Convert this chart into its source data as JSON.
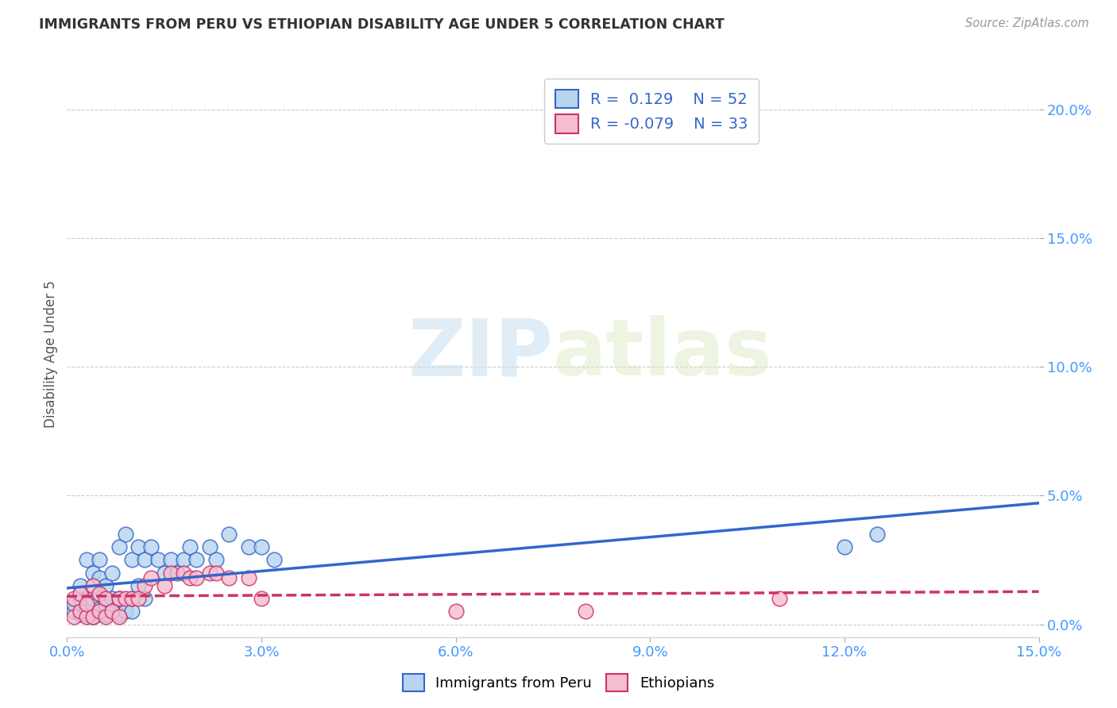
{
  "title": "IMMIGRANTS FROM PERU VS ETHIOPIAN DISABILITY AGE UNDER 5 CORRELATION CHART",
  "source": "Source: ZipAtlas.com",
  "ylabel": "Disability Age Under 5",
  "xlim": [
    0.0,
    0.15
  ],
  "ylim": [
    -0.005,
    0.215
  ],
  "xticks": [
    0.0,
    0.03,
    0.06,
    0.09,
    0.12,
    0.15
  ],
  "yticks": [
    0.0,
    0.05,
    0.1,
    0.15,
    0.2
  ],
  "peru_R": 0.129,
  "peru_N": 52,
  "eth_R": -0.079,
  "eth_N": 33,
  "peru_color": "#b8d4ee",
  "eth_color": "#f5bdd0",
  "peru_line_color": "#3366cc",
  "eth_line_color": "#cc3366",
  "peru_x": [
    0.001,
    0.001,
    0.002,
    0.002,
    0.002,
    0.003,
    0.003,
    0.003,
    0.003,
    0.004,
    0.004,
    0.004,
    0.004,
    0.005,
    0.005,
    0.005,
    0.005,
    0.005,
    0.006,
    0.006,
    0.006,
    0.007,
    0.007,
    0.007,
    0.008,
    0.008,
    0.008,
    0.009,
    0.009,
    0.01,
    0.01,
    0.01,
    0.011,
    0.011,
    0.012,
    0.012,
    0.013,
    0.014,
    0.015,
    0.016,
    0.017,
    0.018,
    0.019,
    0.02,
    0.022,
    0.023,
    0.025,
    0.028,
    0.03,
    0.032,
    0.12,
    0.125
  ],
  "peru_y": [
    0.005,
    0.008,
    0.004,
    0.01,
    0.015,
    0.004,
    0.006,
    0.01,
    0.025,
    0.003,
    0.007,
    0.01,
    0.02,
    0.004,
    0.006,
    0.012,
    0.018,
    0.025,
    0.004,
    0.008,
    0.015,
    0.005,
    0.01,
    0.02,
    0.004,
    0.01,
    0.03,
    0.005,
    0.035,
    0.005,
    0.01,
    0.025,
    0.015,
    0.03,
    0.01,
    0.025,
    0.03,
    0.025,
    0.02,
    0.025,
    0.02,
    0.025,
    0.03,
    0.025,
    0.03,
    0.025,
    0.035,
    0.03,
    0.03,
    0.025,
    0.03,
    0.035
  ],
  "eth_x": [
    0.001,
    0.001,
    0.002,
    0.002,
    0.003,
    0.003,
    0.004,
    0.004,
    0.005,
    0.005,
    0.006,
    0.006,
    0.007,
    0.008,
    0.008,
    0.009,
    0.01,
    0.011,
    0.012,
    0.013,
    0.015,
    0.016,
    0.018,
    0.019,
    0.02,
    0.022,
    0.023,
    0.025,
    0.028,
    0.03,
    0.06,
    0.08,
    0.11
  ],
  "eth_y": [
    0.003,
    0.01,
    0.005,
    0.012,
    0.003,
    0.008,
    0.003,
    0.015,
    0.005,
    0.012,
    0.003,
    0.01,
    0.005,
    0.003,
    0.01,
    0.01,
    0.01,
    0.01,
    0.015,
    0.018,
    0.015,
    0.02,
    0.02,
    0.018,
    0.018,
    0.02,
    0.02,
    0.018,
    0.018,
    0.01,
    0.005,
    0.005,
    0.01
  ],
  "watermark_zip": "ZIP",
  "watermark_atlas": "atlas",
  "legend_peru_label": "Immigrants from Peru",
  "legend_eth_label": "Ethiopians",
  "background_color": "#ffffff",
  "grid_color": "#cccccc",
  "title_color": "#333333",
  "source_color": "#999999",
  "tick_color": "#4499ff",
  "ylabel_color": "#555555",
  "legend_text_color": "#3366cc"
}
